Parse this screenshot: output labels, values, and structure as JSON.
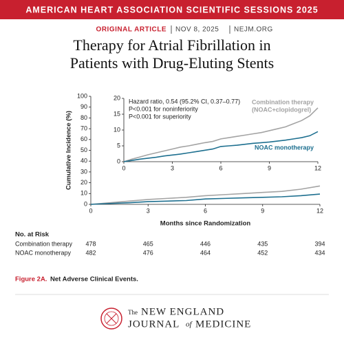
{
  "banner": "AMERICAN HEART ASSOCIATION SCIENTIFIC SESSIONS 2025",
  "article_type": "ORIGINAL ARTICLE",
  "date": "NOV 8, 2025",
  "site": "NEJM.ORG",
  "title_lines": [
    "Therapy for Atrial Fibrillation in",
    "Patients with Drug-Eluting Stents"
  ],
  "chart_data": [
    {
      "type": "line",
      "y_label": "Cumulative Incidence (%)",
      "x_label": "Months since Randomization",
      "x": [
        0,
        1,
        2,
        3,
        4,
        5,
        6,
        7,
        8,
        9,
        10,
        11,
        12
      ],
      "series": [
        {
          "color": "#a3a3a3",
          "values": [
            0,
            1.5,
            3,
            4.5,
            5.5,
            6.5,
            8,
            9,
            10,
            11,
            12,
            14,
            17
          ]
        },
        {
          "color": "#1d6f8f",
          "values": [
            0,
            0.8,
            1.5,
            2.5,
            3,
            3.5,
            5,
            5.5,
            6,
            6.5,
            7,
            8,
            9.5
          ]
        }
      ],
      "xlim": [
        0,
        12
      ],
      "xticks": [
        0,
        3,
        6,
        9,
        12
      ],
      "ylim": [
        0,
        100
      ],
      "yticks": [
        0,
        10,
        20,
        30,
        40,
        50,
        60,
        70,
        80,
        90,
        100
      ]
    },
    {
      "type": "line",
      "annotations": [
        "Hazard ratio, 0.54 (95.2% CI, 0.37–0.77)",
        "P<0.001 for noninferiority",
        "P<0.001 for superiority"
      ],
      "x": [
        0,
        0.5,
        1,
        1.5,
        2,
        2.5,
        3,
        3.5,
        4,
        4.5,
        5,
        5.5,
        6,
        6.5,
        7,
        7.5,
        8,
        8.5,
        9,
        9.5,
        10,
        10.5,
        11,
        11.5,
        12
      ],
      "series": [
        {
          "name": "Combination therapy",
          "note": "(NOAC+clopidogrel)",
          "color": "#a3a3a3",
          "values": [
            0,
            0.8,
            1.5,
            2.2,
            2.8,
            3.4,
            4,
            4.6,
            5,
            5.5,
            6,
            6.4,
            7.2,
            7.6,
            8,
            8.4,
            8.8,
            9.2,
            9.8,
            10.4,
            11,
            12,
            13,
            14.5,
            17
          ]
        },
        {
          "name": "NOAC monotherapy",
          "color": "#1d6f8f",
          "values": [
            0,
            0.4,
            0.8,
            1.1,
            1.4,
            1.8,
            2.1,
            2.4,
            2.8,
            3.2,
            3.6,
            4,
            4.8,
            5,
            5.2,
            5.5,
            5.8,
            6,
            6.2,
            6.5,
            6.8,
            7.2,
            7.6,
            8.2,
            9.5
          ]
        }
      ],
      "xlim": [
        0,
        12
      ],
      "xticks": [
        0,
        3,
        6,
        9,
        12
      ],
      "ylim": [
        0,
        20
      ],
      "yticks": [
        0,
        5,
        10,
        15,
        20
      ]
    }
  ],
  "risk_table": {
    "title": "No. at Risk",
    "rows": [
      {
        "name": "Combination therapy",
        "values": [
          478,
          465,
          446,
          435,
          394
        ]
      },
      {
        "name": "NOAC monotherapy",
        "values": [
          482,
          476,
          464,
          452,
          434
        ]
      }
    ]
  },
  "caption": {
    "label": "Figure 2A.",
    "text": "Net Adverse Clinical Events."
  },
  "journal": {
    "the": "The",
    "line1": "NEW ENGLAND",
    "journal": "JOURNAL",
    "of": "of",
    "medicine": "MEDICINE"
  }
}
